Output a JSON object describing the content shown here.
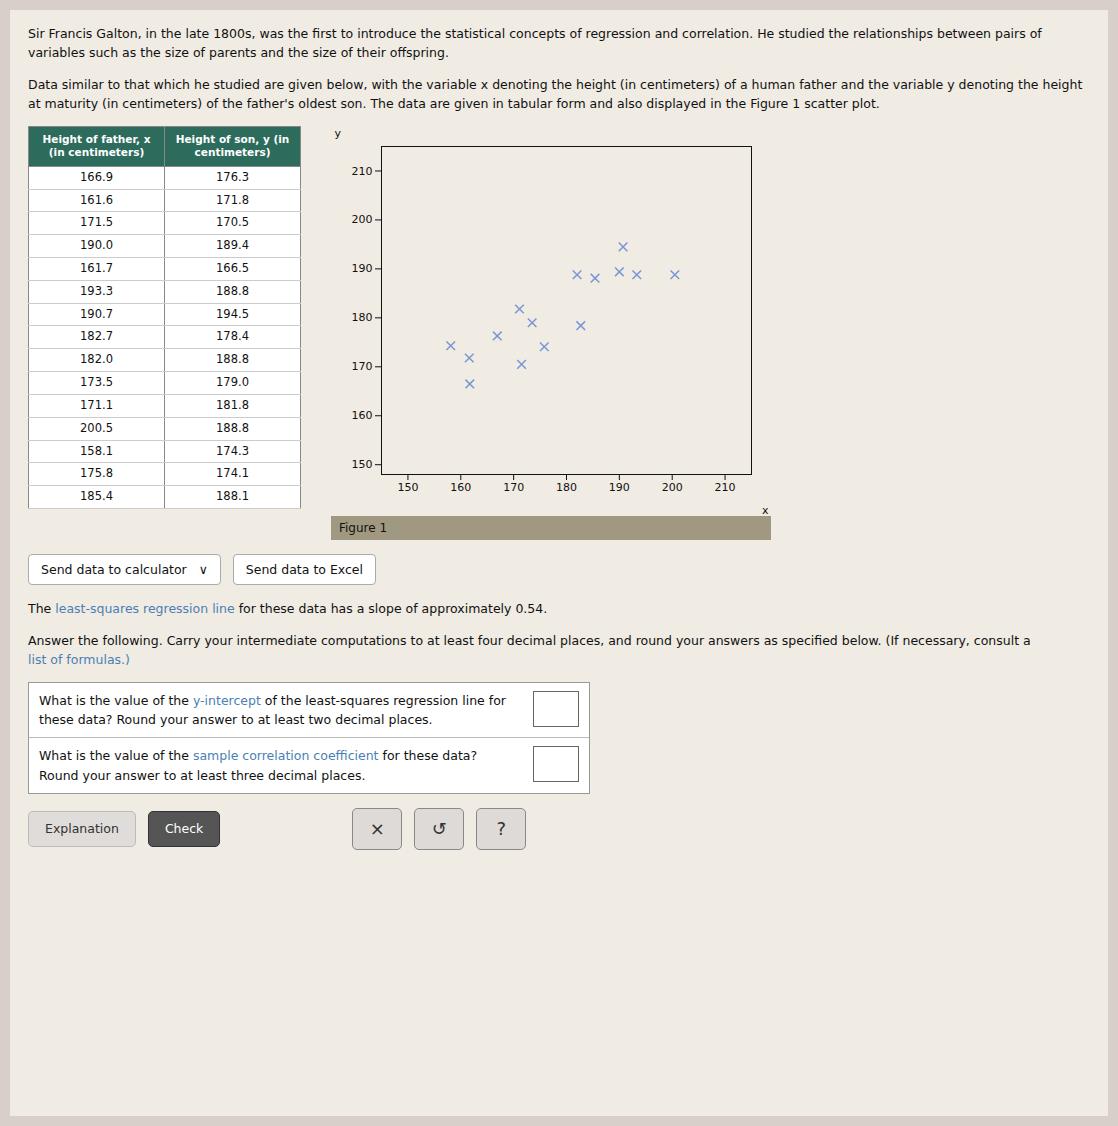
{
  "chart_data": {
    "type": "scatter",
    "x_label": "x",
    "y_label": "y",
    "x": [
      166.9,
      161.6,
      171.5,
      190.0,
      161.7,
      193.3,
      190.7,
      182.7,
      182.0,
      173.5,
      171.1,
      200.5,
      158.1,
      175.8,
      185.4
    ],
    "values": [
      176.3,
      171.8,
      170.5,
      189.4,
      166.5,
      188.8,
      194.5,
      178.4,
      188.8,
      179.0,
      181.8,
      188.8,
      174.3,
      174.1,
      188.1
    ],
    "color": "#7B96D6",
    "marker": "x",
    "xlim": [
      145,
      215
    ],
    "ylim": [
      148,
      215
    ],
    "xticks": [
      150,
      160,
      170,
      180,
      190,
      200,
      210
    ],
    "yticks": [
      150,
      160,
      170,
      180,
      190,
      200,
      210
    ],
    "grid": false,
    "annotations": [
      "Sir Francis Galton, in the late 1800s, was the first to introduce the statistical concepts of regression and correlation. He studied the relationships between pairs of variables such as the size of parents and the size of their offspring.",
      "Data similar to that which he studied are given below, with the variable x denoting the height (in centimeters) of a human father and the variable y denoting the height at maturity (in centimeters) of the father's oldest son. The data are given in tabular form and also displayed in the Figure 1 scatter plot.",
      "Height of father, x (in centimeters)",
      "Height of son, y (in centimeters)",
      "Send data to calculator   ∨",
      "Send data to Excel",
      "Figure 1",
      "The ",
      "least-squares regression line",
      " for these data has a slope of approximately 0.54.",
      "Answer the following. Carry your intermediate computations to at least four decimal places, and round your answers as specified below. (If necessary, consult a",
      "list of formulas.)",
      "What is the value of the ",
      "y-intercept",
      " of the least-squares regression line for these data? Round your answer to at least two decimal places.",
      "sample correlation coefficient",
      " for these data? Round your answer to at least three decimal places.",
      "Explanation",
      "Check",
      "×",
      "↺",
      "?"
    ]
  }
}
